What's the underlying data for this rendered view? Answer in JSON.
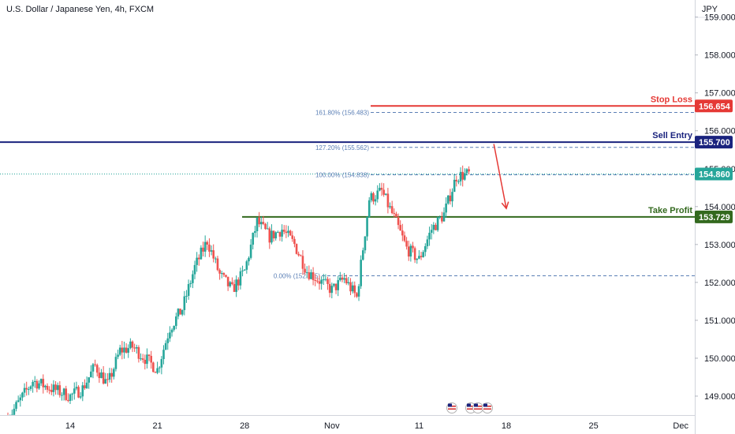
{
  "header": {
    "symbol": "U.S. Dollar / Japanese Yen, 4h, FXCM"
  },
  "price_axis": {
    "currency": "JPY"
  },
  "colors": {
    "bull": "#26a69a",
    "bear": "#ef5350",
    "stop_loss": "#e53935",
    "sell_entry": "#1a237e",
    "take_profit": "#33691e",
    "current": "#26a69a",
    "fib": "#5b7fb5",
    "arrow": "#e53935"
  },
  "chart_data": {
    "type": "candlestick",
    "ylim": [
      148.5,
      159.45
    ],
    "yticks": [
      "149.000",
      "150.000",
      "151.000",
      "152.000",
      "153.000",
      "154.000",
      "155.000",
      "156.000",
      "157.000",
      "158.000",
      "159.000"
    ],
    "xticks": [
      "14",
      "21",
      "28",
      "Nov",
      "11",
      "18",
      "25",
      "Dec"
    ],
    "levels": [
      {
        "name": "Stop Loss",
        "value": 156.654,
        "label": "156.654"
      },
      {
        "name": "Sell Entry",
        "value": 155.7,
        "label": "155.700"
      },
      {
        "name": "Take Profit",
        "value": 153.729,
        "label": "153.729"
      }
    ],
    "current_price": {
      "value": 154.86,
      "label": "154.860"
    },
    "fibonacci": [
      {
        "label": "161.80% (156.483)",
        "value": 156.483
      },
      {
        "label": "127.20% (155.562)",
        "value": 155.562
      },
      {
        "label": "100.00% (154.838)",
        "value": 154.838
      },
      {
        "label": "0.00% (152.175)",
        "value": 152.175
      }
    ],
    "anchors": [
      {
        "date": "Oct 9",
        "price": 148.4
      },
      {
        "date": "Oct 11",
        "price": 149.4
      },
      {
        "date": "Oct 14",
        "price": 149.0
      },
      {
        "date": "Oct 15",
        "price": 149.2
      },
      {
        "date": "Oct 16",
        "price": 149.8
      },
      {
        "date": "Oct 17",
        "price": 149.3
      },
      {
        "date": "Oct 18",
        "price": 150.2
      },
      {
        "date": "Oct 19",
        "price": 150.3
      },
      {
        "date": "Oct 21",
        "price": 149.7
      },
      {
        "date": "Oct 22",
        "price": 150.8
      },
      {
        "date": "Oct 23",
        "price": 151.3
      },
      {
        "date": "Oct 24",
        "price": 152.4
      },
      {
        "date": "Oct 25",
        "price": 153.1
      },
      {
        "date": "Oct 26",
        "price": 152.2
      },
      {
        "date": "Oct 27",
        "price": 151.8
      },
      {
        "date": "Oct 28",
        "price": 152.3
      },
      {
        "date": "Oct 29",
        "price": 153.6
      },
      {
        "date": "Oct 30",
        "price": 153.2
      },
      {
        "date": "Oct 31",
        "price": 153.4
      },
      {
        "date": "Nov 1",
        "price": 153.0
      },
      {
        "date": "Nov 2",
        "price": 152.3
      },
      {
        "date": "Nov 4",
        "price": 151.8
      },
      {
        "date": "Nov 5",
        "price": 152.1
      },
      {
        "date": "Nov 6",
        "price": 151.6
      },
      {
        "date": "Nov 7",
        "price": 154.2
      },
      {
        "date": "Nov 8",
        "price": 154.4
      },
      {
        "date": "Nov 9",
        "price": 153.7
      },
      {
        "date": "Nov 10",
        "price": 152.9
      },
      {
        "date": "Nov 11",
        "price": 152.6
      },
      {
        "date": "Nov 12",
        "price": 153.4
      },
      {
        "date": "Nov 13",
        "price": 153.8
      },
      {
        "date": "Nov 14",
        "price": 154.8
      },
      {
        "date": "Nov 15",
        "price": 154.86
      }
    ],
    "arrow": {
      "from": {
        "date": "Nov 17",
        "price": 155.65
      },
      "to": {
        "date": "Nov 18",
        "price": 153.95
      }
    }
  }
}
